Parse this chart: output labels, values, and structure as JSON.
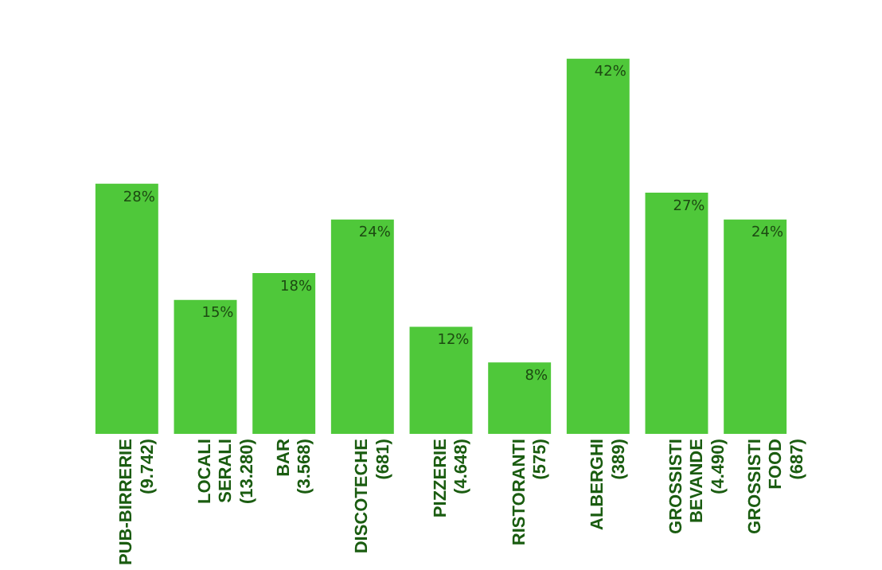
{
  "chart_data": {
    "type": "bar",
    "categories": [
      "PUB-BIRRERIE (9.742)",
      "LOCALI SERALI (13.280)",
      "BAR (3.568)",
      "DISCOTECHE (681)",
      "PIZZERIE (4.648)",
      "RISTORANTI (575)",
      "ALBERGHI (389)",
      "GROSSISTI BEVANDE (4.490)",
      "GROSSISTI FOOD (687)"
    ],
    "values": [
      28,
      15,
      18,
      24,
      12,
      8,
      42,
      27,
      24
    ],
    "value_labels": [
      "28%",
      "15%",
      "18%",
      "24%",
      "12%",
      "8%",
      "42%",
      "27%",
      "24%"
    ],
    "color": "#4fc83a",
    "grid": false,
    "legend": false
  }
}
